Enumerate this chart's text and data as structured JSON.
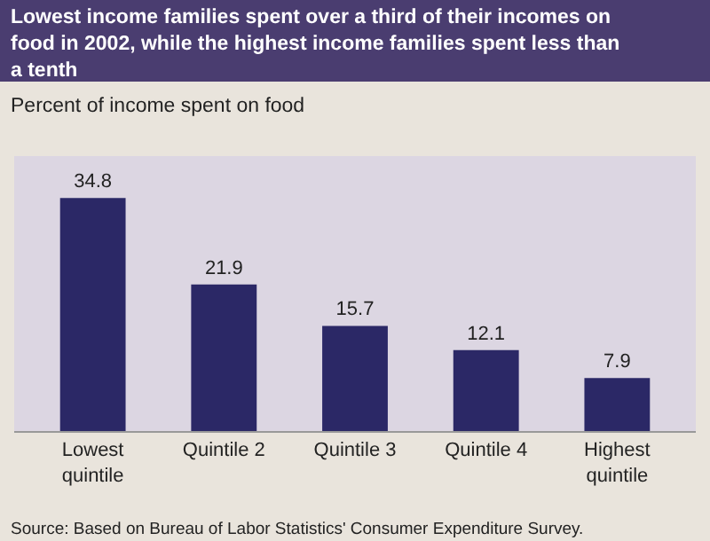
{
  "chart_data": {
    "type": "bar",
    "title": "Lowest income families spent over a third of their incomes on food in 2002, while the highest income families spent less than a tenth",
    "ylabel": "Percent of income spent on food",
    "categories": [
      "Lowest quintile",
      "Quintile 2",
      "Quintile 3",
      "Quintile 4",
      "Highest quintile"
    ],
    "values": [
      34.8,
      21.9,
      15.7,
      12.1,
      7.9
    ],
    "color": "#2b2866",
    "data_labels": true,
    "grid": false,
    "legend": false,
    "annotations": [
      "Source: Based on Bureau of Labor Statistics' Consumer Expenditure Survey."
    ]
  }
}
